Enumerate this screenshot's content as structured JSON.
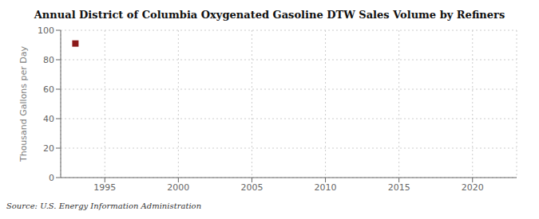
{
  "chart_data": {
    "type": "scatter",
    "title": "Annual District of Columbia Oxygenated Gasoline DTW Sales Volume by Refiners",
    "y_label": "Thousand Gallons per Day",
    "annotations": [
      "Source: U.S. Energy Information Administration"
    ],
    "x": [
      1993
    ],
    "values": [
      91.0
    ],
    "color": "#8b1a1a",
    "marker": "square",
    "xlim": [
      1992,
      2023
    ],
    "ylim": [
      0,
      100
    ],
    "xticks": [
      1995,
      2000,
      2005,
      2010,
      2015,
      2020
    ],
    "yticks": [
      0,
      20,
      40,
      60,
      80,
      100
    ],
    "grid": true
  }
}
